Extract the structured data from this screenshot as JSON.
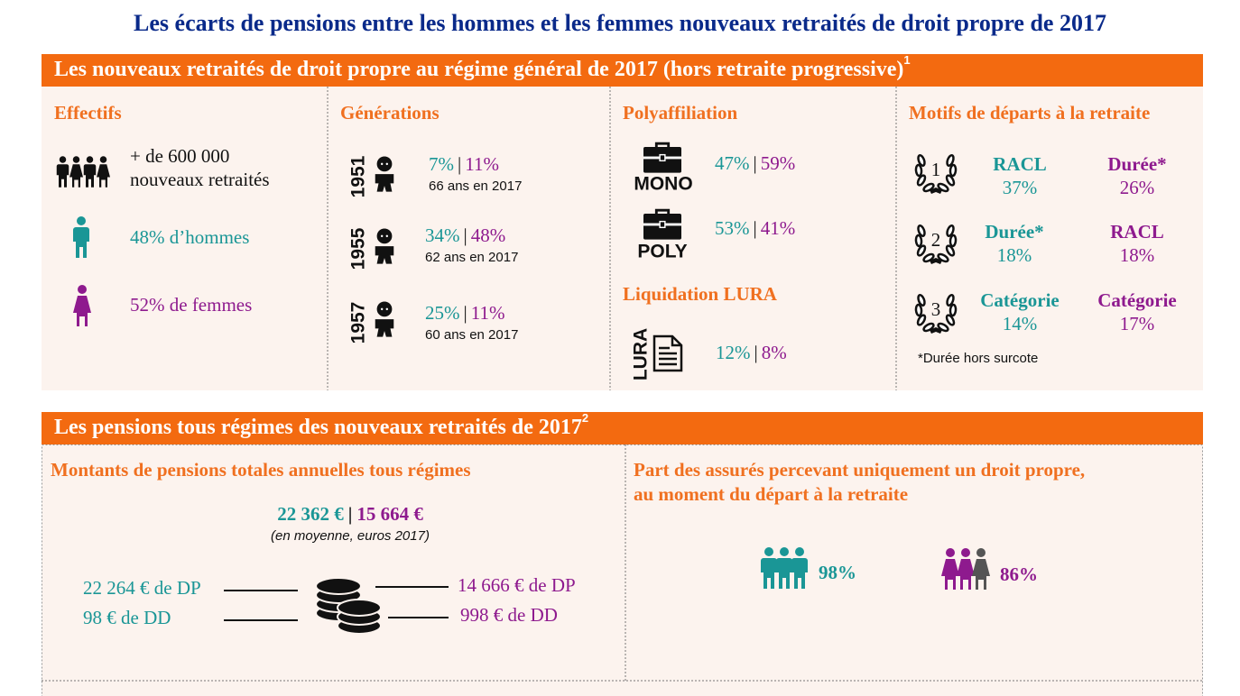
{
  "title": "Les écarts de pensions entre les hommes et les femmes nouveaux retraités de droit propre de 2017",
  "separator": "|",
  "section1": {
    "heading": "Les nouveaux retraités de droit propre au régime général de 2017 (hors retraite progressive)",
    "footnote": "1",
    "effectifs": {
      "title": "Effectifs",
      "total_line1": "+ de 600 000",
      "total_line2": "nouveaux retraités",
      "men": "48% d’hommes",
      "women": "52% de femmes"
    },
    "generations": {
      "title": "Générations",
      "rows": [
        {
          "year": "1951",
          "men": "7%",
          "women": "11%",
          "note": "66 ans en 2017"
        },
        {
          "year": "1955",
          "men": "34%",
          "women": "48%",
          "note": "62 ans en 2017"
        },
        {
          "year": "1957",
          "men": "25%",
          "women": "11%",
          "note": "60 ans en 2017"
        }
      ]
    },
    "polyaffiliation": {
      "title": "Polyaffiliation",
      "rows": [
        {
          "label": "MONO",
          "men": "47%",
          "women": "59%"
        },
        {
          "label": "POLY",
          "men": "53%",
          "women": "41%"
        }
      ]
    },
    "lura": {
      "title": "Liquidation LURA",
      "icon_label": "LURA",
      "men": "12%",
      "women": "8%"
    },
    "motifs": {
      "title": "Motifs de départs à la retraite",
      "rows": [
        {
          "rank": "1",
          "men_label": "RACL",
          "men_value": "37%",
          "women_label": "Durée*",
          "women_value": "26%"
        },
        {
          "rank": "2",
          "men_label": "Durée*",
          "men_value": "18%",
          "women_label": "RACL",
          "women_value": "18%"
        },
        {
          "rank": "3",
          "men_label": "Catégorie",
          "men_value": "14%",
          "women_label": "Catégorie",
          "women_value": "17%"
        }
      ],
      "note": "*Durée hors surcote"
    }
  },
  "section2": {
    "heading": "Les pensions tous régimes des nouveaux retraités de 2017",
    "footnote": "2",
    "amounts": {
      "title": "Montants de pensions totales annuelles tous régimes",
      "men_total": "22 362 €",
      "women_total": "15 664 €",
      "note": "(en moyenne, euros 2017)",
      "men_dp": "22 264 € de DP",
      "men_dd": "98 € de DD",
      "women_dp": "14 666 € de DP",
      "women_dd": "998 € de DD"
    },
    "own_right": {
      "title_line1": "Part des assurés percevant uniquement un droit propre,",
      "title_line2": "au moment du départ à la retraite",
      "men": "98%",
      "women": "86%"
    }
  }
}
